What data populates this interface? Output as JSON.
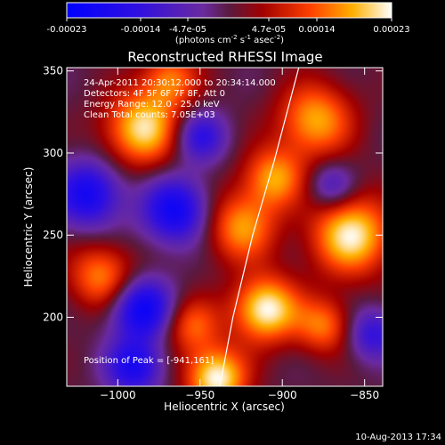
{
  "colorbar": {
    "tick_labels": [
      "-0.00023",
      "-0.00014",
      "-4.7e-05",
      "4.7e-05",
      "0.00014",
      "0.00023"
    ],
    "unit_main": "(photons cm",
    "unit_exp1": "-2",
    "unit_mid": " s",
    "unit_exp2": "-1",
    "unit_tail": " asec",
    "unit_exp3": "-2",
    "unit_close": ")",
    "vmin": -0.00023,
    "vmax": 0.00023
  },
  "plot": {
    "title": "Reconstructed RHESSI Image",
    "info_lines": [
      "24-Apr-2011 20:30:12.000 to 20:34:14.000",
      "Detectors: 4F 5F 6F 7F 8F, Att 0",
      "Energy Range: 12.0 - 25.0 keV",
      "Clean     Total counts: 7.05E+03"
    ],
    "peak_label": "Position of Peak = [-941,161]",
    "timestamp": "10-Aug-2013 17:34"
  },
  "chart_data": {
    "type": "heatmap",
    "title": "Reconstructed RHESSI Image",
    "xlabel": "Heliocentric X (arcsec)",
    "ylabel": "Heliocentric Y (arcsec)",
    "xlim": [
      -1031,
      -839
    ],
    "ylim": [
      158,
      352
    ],
    "x_ticks": [
      -1000,
      -950,
      -900,
      -850
    ],
    "y_ticks": [
      200,
      250,
      300,
      350
    ],
    "x_tick_labels": [
      "−1000",
      "−950",
      "−900",
      "−850"
    ],
    "y_tick_labels": [
      "200",
      "250",
      "300",
      "350"
    ],
    "colormap": "blue-purple-red-yellow-white",
    "sources": [
      {
        "x": -910,
        "y": 205,
        "amp": 1.0,
        "r": 14
      },
      {
        "x": -940,
        "y": 163,
        "amp": 1.0,
        "r": 13
      },
      {
        "x": -985,
        "y": 315,
        "amp": 0.9,
        "r": 16
      },
      {
        "x": -858,
        "y": 250,
        "amp": 0.95,
        "r": 17
      },
      {
        "x": -925,
        "y": 255,
        "amp": 0.7,
        "r": 15
      },
      {
        "x": -880,
        "y": 320,
        "amp": 0.75,
        "r": 16
      },
      {
        "x": -1010,
        "y": 225,
        "amp": 0.65,
        "r": 14
      },
      {
        "x": -968,
        "y": 345,
        "amp": 0.6,
        "r": 12
      },
      {
        "x": -905,
        "y": 285,
        "amp": 0.7,
        "r": 13
      },
      {
        "x": -955,
        "y": 195,
        "amp": 0.55,
        "r": 12
      },
      {
        "x": -875,
        "y": 195,
        "amp": 0.6,
        "r": 12
      },
      {
        "x": -985,
        "y": 205,
        "amp": -0.9,
        "r": 13
      },
      {
        "x": -965,
        "y": 265,
        "amp": -0.85,
        "r": 14
      },
      {
        "x": -1018,
        "y": 275,
        "amp": -0.8,
        "r": 14
      },
      {
        "x": -990,
        "y": 170,
        "amp": -0.75,
        "r": 12
      },
      {
        "x": -950,
        "y": 310,
        "amp": -0.6,
        "r": 11
      },
      {
        "x": -845,
        "y": 190,
        "amp": -0.55,
        "r": 11
      },
      {
        "x": -870,
        "y": 280,
        "amp": -0.45,
        "r": 10
      }
    ],
    "limb": [
      [
        -938,
        158
      ],
      [
        -930,
        200
      ],
      [
        -918,
        250
      ],
      [
        -905,
        295
      ],
      [
        -890,
        352
      ]
    ]
  }
}
